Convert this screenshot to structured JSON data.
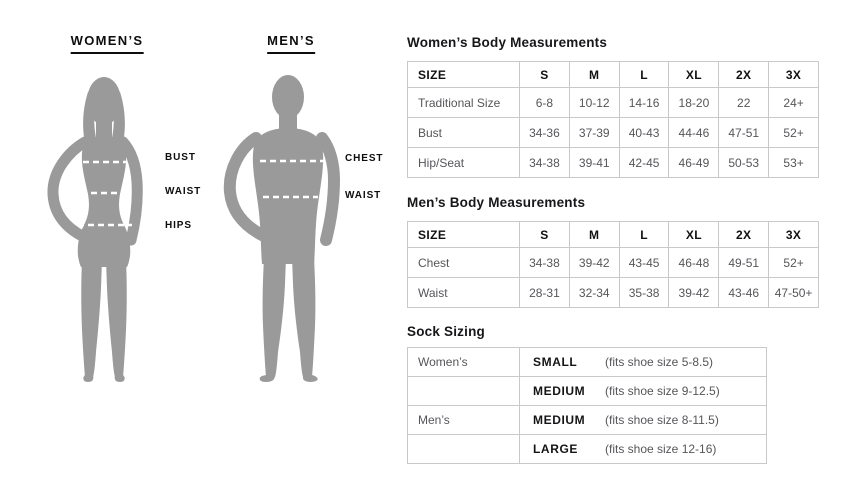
{
  "figures": {
    "women": {
      "title": "WOMEN’S",
      "labels": [
        "BUST",
        "WAIST",
        "HIPS"
      ]
    },
    "men": {
      "title": "MEN’S",
      "labels": [
        "CHEST",
        "WAIST"
      ]
    }
  },
  "tables": [
    {
      "title": "Women’s Body Measurements",
      "headers": [
        "SIZE",
        "S",
        "M",
        "L",
        "XL",
        "2X",
        "3X"
      ],
      "rows": [
        [
          "Traditional Size",
          "6-8",
          "10-12",
          "14-16",
          "18-20",
          "22",
          "24+"
        ],
        [
          "Bust",
          "34-36",
          "37-39",
          "40-43",
          "44-46",
          "47-51",
          "52+"
        ],
        [
          "Hip/Seat",
          "34-38",
          "39-41",
          "42-45",
          "46-49",
          "50-53",
          "53+"
        ]
      ]
    },
    {
      "title": "Men’s Body Measurements",
      "headers": [
        "SIZE",
        "S",
        "M",
        "L",
        "XL",
        "2X",
        "3X"
      ],
      "rows": [
        [
          "Chest",
          "34-38",
          "39-42",
          "43-45",
          "46-48",
          "49-51",
          "52+"
        ],
        [
          "Waist",
          "28-31",
          "32-34",
          "35-38",
          "39-42",
          "43-46",
          "47-50+"
        ]
      ]
    }
  ],
  "sock": {
    "title": "Sock Sizing",
    "rows": [
      {
        "group": "Women’s",
        "size": "SMALL",
        "fits": "(fits shoe size 5-8.5)"
      },
      {
        "group": "",
        "size": "MEDIUM",
        "fits": "(fits shoe size 9-12.5)"
      },
      {
        "group": "Men’s",
        "size": "MEDIUM",
        "fits": "(fits shoe size 8-11.5)"
      },
      {
        "group": "",
        "size": "LARGE",
        "fits": "(fits shoe size 12-16)"
      }
    ]
  },
  "colors": {
    "silhouette": "#9a9a9a",
    "dash_line": "#ffffff",
    "table_border": "#c9c9c9",
    "heading_text": "#0e0e0e",
    "cell_text": "#56565a"
  }
}
